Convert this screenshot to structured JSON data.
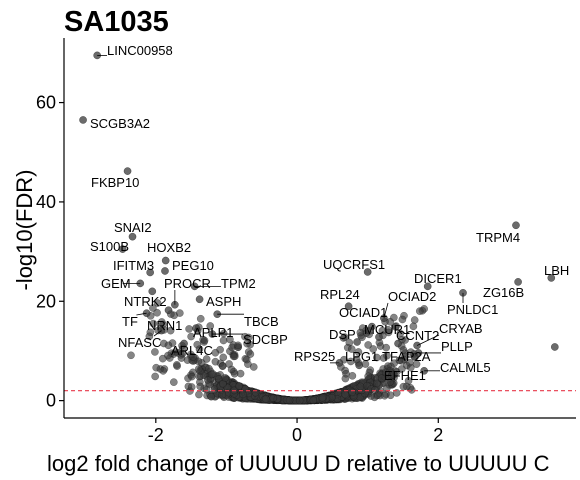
{
  "chart_data": {
    "type": "scatter",
    "title": "SA1035",
    "xlabel": "log2 fold change of UUUUU D relative to UUUUU C",
    "ylabel": "-log10(FDR)",
    "xlim": [
      -3.3,
      3.95
    ],
    "ylim": [
      -3.5,
      73
    ],
    "x_ticks": [
      -2,
      0,
      2
    ],
    "y_ticks": [
      0,
      20,
      40,
      60
    ],
    "threshold": {
      "y": 2,
      "color": "#e8394a"
    },
    "point_color": "#3a3a3a",
    "labeled_points": [
      {
        "label": "LINC00958",
        "x": -2.83,
        "y": 69.5
      },
      {
        "label": "SCGB3A2",
        "x": -3.03,
        "y": 56.5
      },
      {
        "label": "FKBP10",
        "x": -2.4,
        "y": 46.2
      },
      {
        "label": "SNAI2",
        "x": -2.33,
        "y": 33.0
      },
      {
        "label": "S100B",
        "x": -2.47,
        "y": 30.5
      },
      {
        "label": "HOXB2",
        "x": -1.86,
        "y": 28.2
      },
      {
        "label": "IFITM3",
        "x": -2.08,
        "y": 25.8
      },
      {
        "label": "PEG10",
        "x": -1.87,
        "y": 26.1
      },
      {
        "label": "GEM",
        "x": -2.22,
        "y": 23.6
      },
      {
        "label": "TPM2",
        "x": -1.45,
        "y": 23.0
      },
      {
        "label": "NTRK2",
        "x": -2.05,
        "y": 22.0
      },
      {
        "label": "PROCR",
        "x": -1.73,
        "y": 19.3
      },
      {
        "label": "ASPH",
        "x": -1.38,
        "y": 20.4
      },
      {
        "label": "TF",
        "x": -2.13,
        "y": 17.6
      },
      {
        "label": "NRN1",
        "x": -1.82,
        "y": 18.2
      },
      {
        "label": "TBCB",
        "x": -1.13,
        "y": 17.4
      },
      {
        "label": "NFASC",
        "x": -1.92,
        "y": 14.1
      },
      {
        "label": "APLP1",
        "x": -1.43,
        "y": 14.6
      },
      {
        "label": "SDCBP",
        "x": -1.2,
        "y": 13.4
      },
      {
        "label": "ARL4C",
        "x": -1.6,
        "y": 11.5
      },
      {
        "label": "UQCRFS1",
        "x": 1.0,
        "y": 25.9
      },
      {
        "label": "DICER1",
        "x": 1.85,
        "y": 23.0
      },
      {
        "label": "TRPM4",
        "x": 3.1,
        "y": 35.3
      },
      {
        "label": "LBH",
        "x": 3.6,
        "y": 24.7
      },
      {
        "label": "ZG16B",
        "x": 3.13,
        "y": 23.9
      },
      {
        "label": "PNLDC1",
        "x": 2.35,
        "y": 21.7
      },
      {
        "label": "RPL24",
        "x": 0.73,
        "y": 19.0
      },
      {
        "label": "OCIAD2",
        "x": 1.23,
        "y": 16.6
      },
      {
        "label": "OCIAD1",
        "x": 1.06,
        "y": 14.9
      },
      {
        "label": "MCUR1",
        "x": 1.16,
        "y": 12.8
      },
      {
        "label": "CCNT2",
        "x": 1.43,
        "y": 11.5
      },
      {
        "label": "CRYAB",
        "x": 1.7,
        "y": 11.1
      },
      {
        "label": "DSP",
        "x": 0.85,
        "y": 11.8
      },
      {
        "label": "PLLP",
        "x": 1.72,
        "y": 9.6
      },
      {
        "label": "RPS25",
        "x": 0.6,
        "y": 7.6
      },
      {
        "label": "LPG1",
        "x": 0.88,
        "y": 7.1
      },
      {
        "label": "TFAP2A",
        "x": 1.45,
        "y": 8.1
      },
      {
        "label": "CALML5",
        "x": 1.8,
        "y": 6.0
      },
      {
        "label": "EFHE1",
        "x": 1.37,
        "y": 5.2
      },
      {
        "label": "",
        "x": 3.65,
        "y": 10.8
      }
    ]
  }
}
